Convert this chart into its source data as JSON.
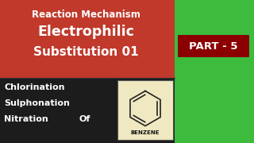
{
  "bg_red": "#c0392b",
  "bg_black": "#1c1c1c",
  "bg_green": "#3dbb3d",
  "bg_dark_red": "#8b0000",
  "text_white": "#ffffff",
  "benzene_bg": "#f0e8c0",
  "benzene_border": "#555555",
  "title1": "Reaction Mechanism",
  "title2": "Electrophilic",
  "title3": "Substitution 01",
  "line1": "Chlorination",
  "line2": "Sulphonation",
  "line3": "Nitration",
  "of_text": "Of",
  "benzene_label": "BENZENE",
  "part_text": "PART - 5",
  "fig_width": 3.2,
  "fig_height": 1.8,
  "dpi": 100
}
